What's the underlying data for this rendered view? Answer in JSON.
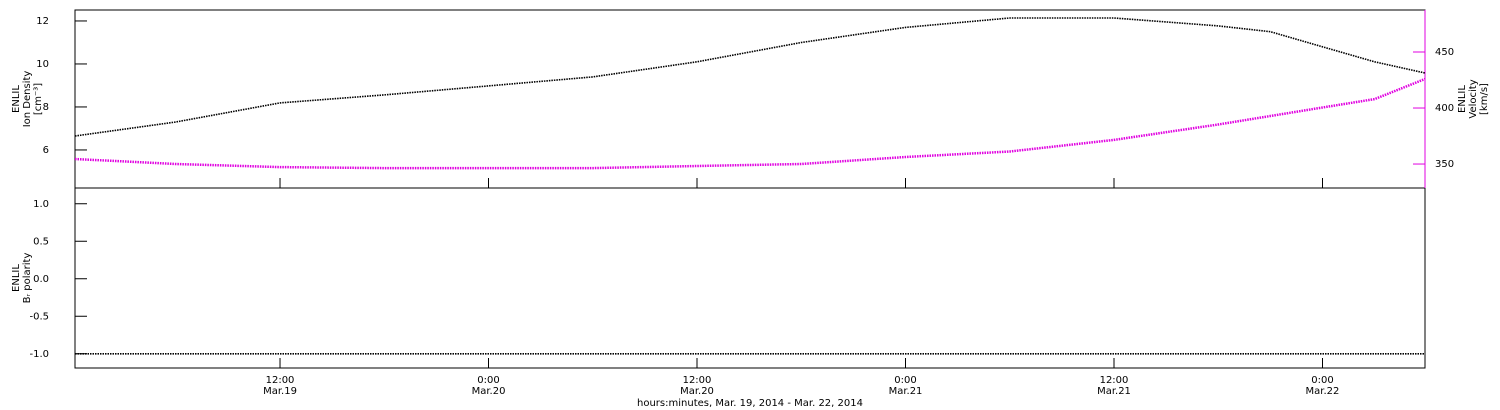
{
  "chart_data": [
    {
      "type": "line",
      "ylabel": [
        "ENLIL",
        "Ion Density",
        "[cm⁻³]"
      ],
      "y2label": [
        "ENLIL",
        "Velocity",
        "[km/s]"
      ],
      "x": [
        0.2,
        6,
        12,
        18,
        24,
        30,
        36,
        42,
        48,
        54,
        60,
        66,
        69,
        72,
        75,
        77.9
      ],
      "xlim": [
        0.2,
        77.9
      ],
      "ylim": [
        4.23,
        12.51
      ],
      "yticks": [
        6,
        8,
        10,
        12
      ],
      "y2lim": [
        328.6,
        487.5
      ],
      "y2ticks": [
        350,
        400,
        450
      ],
      "series": [
        {
          "name": "Ion Density",
          "color": "#000000",
          "values": [
            6.65,
            7.3,
            8.19,
            8.56,
            8.98,
            9.4,
            10.1,
            11.0,
            11.7,
            12.14,
            12.14,
            11.77,
            11.5,
            10.8,
            10.1,
            9.58
          ]
        },
        {
          "name": "Velocity",
          "color": "#e000e0",
          "axis": "y2",
          "values": [
            354.5,
            350,
            347.3,
            346.4,
            346.4,
            346.4,
            348.2,
            350,
            356.3,
            361.2,
            371.5,
            385.3,
            392.9,
            400.5,
            408,
            425.9
          ]
        }
      ]
    },
    {
      "type": "line",
      "ylabel": [
        "ENLIL",
        "Bᵣ polarity"
      ],
      "xlabel": "hours:minutes, Mar. 19, 2014 - Mar. 22, 2014",
      "x": [
        0.2,
        77.9
      ],
      "xlim": [
        0.2,
        77.9
      ],
      "xticks": [
        {
          "value": 12,
          "label": "12:00"
        },
        {
          "value": 24,
          "label": "0:00"
        },
        {
          "value": 36,
          "label": "12:00"
        },
        {
          "value": 48,
          "label": "0:00"
        },
        {
          "value": 60,
          "label": "12:00"
        },
        {
          "value": 72,
          "label": "0:00"
        }
      ],
      "xtick_dates": [
        "Mar.19",
        "Mar.20",
        "Mar.20",
        "Mar.21",
        "Mar.21",
        "Mar.22"
      ],
      "ylim": [
        -1.19,
        1.21
      ],
      "yticks": [
        {
          "value": -1,
          "label": "-1.0"
        },
        {
          "value": -0.5,
          "label": "-0.5"
        },
        {
          "value": 0,
          "label": "0.0"
        },
        {
          "value": 0.5,
          "label": "0.5"
        },
        {
          "value": 1,
          "label": "1.0"
        }
      ],
      "series": [
        {
          "name": "Br polarity",
          "color": "#000000",
          "values": [
            -1,
            -1
          ]
        }
      ]
    }
  ]
}
